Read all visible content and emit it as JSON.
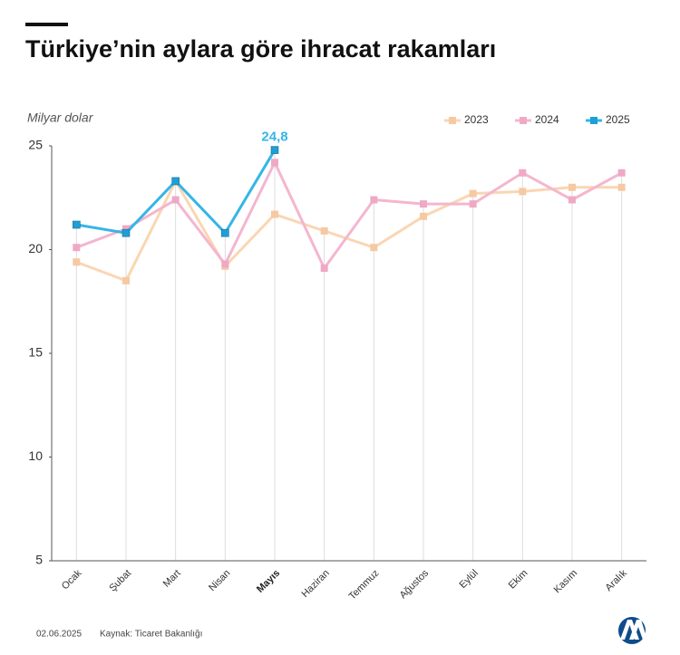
{
  "chart_data": {
    "type": "line",
    "title": "Türkiye’nin aylara göre ihracat rakamları",
    "y_label": "Milyar dolar",
    "date": "02.06.2025",
    "source": "Kaynak: Ticaret Bakanlığı",
    "categories": [
      "Ocak",
      "Şubat",
      "Mart",
      "Nisan",
      "Mayıs",
      "Haziran",
      "Temmuz",
      "Ağustos",
      "Eylül",
      "Ekim",
      "Kasım",
      "Aralık"
    ],
    "series": [
      {
        "name": "2023",
        "color": "#fad6b3",
        "marker_color": "#f6c9a2",
        "values": [
          19.4,
          18.5,
          23.3,
          19.2,
          21.7,
          20.9,
          20.1,
          21.6,
          22.7,
          22.8,
          23.0,
          23.0
        ]
      },
      {
        "name": "2024",
        "color": "#f4b6cf",
        "marker_color": "#efa9c5",
        "values": [
          20.1,
          21.0,
          22.4,
          19.3,
          24.2,
          19.1,
          22.4,
          22.2,
          22.2,
          23.7,
          22.4,
          23.7
        ]
      },
      {
        "name": "2025",
        "color": "#35b5e8",
        "marker_color": "#1f9fd6",
        "values": [
          21.2,
          20.8,
          23.3,
          20.8,
          24.8,
          null,
          null,
          null,
          null,
          null,
          null,
          null
        ],
        "value_labels": [
          null,
          null,
          null,
          null,
          "24,8",
          null,
          null,
          null,
          null,
          null,
          null,
          null
        ]
      }
    ],
    "ylim": [
      5,
      25
    ],
    "yticks": [
      5,
      10,
      15,
      20,
      25
    ],
    "legend": "top-right"
  }
}
